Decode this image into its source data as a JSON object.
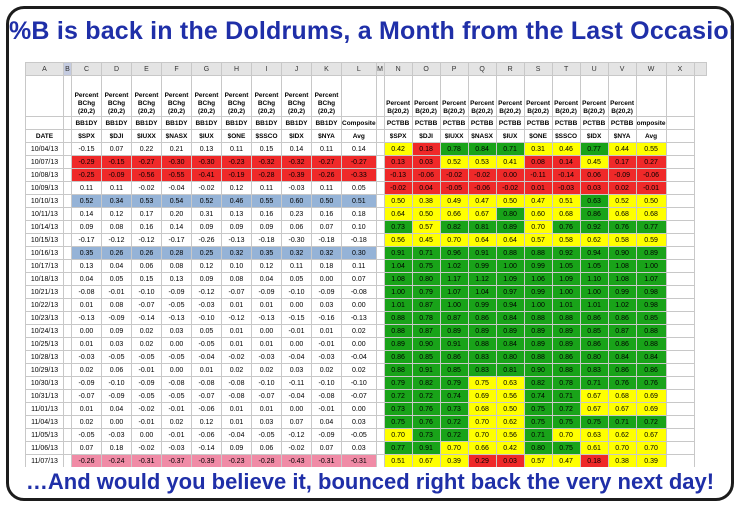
{
  "title": "%B is back in the Doldrums, a Month from the Last Occasion",
  "footer": "…And would you believe it, bounced right back the very next day!",
  "colors": {
    "red": "#ef2929",
    "pink": "#f08ba6",
    "blue": "#95b3d7",
    "yellow": "#ffff00",
    "green": "#19a319",
    "title_blue": "#1f2fa8"
  },
  "column_letters": [
    "A",
    "B",
    "C",
    "D",
    "E",
    "F",
    "G",
    "H",
    "I",
    "J",
    "K",
    "L",
    "M",
    "N",
    "O",
    "P",
    "Q",
    "R",
    "S",
    "T",
    "U",
    "V",
    "W",
    "X"
  ],
  "headers": {
    "bchg": "Percent BChg (20,2)",
    "pct": "Percent B(20,2)",
    "bb_codes": [
      "BB1DY",
      "BB1DY",
      "BB1DY",
      "BB1DY",
      "BB1DY",
      "BB1DY",
      "BB1DY",
      "BB1DY",
      "BB1DY"
    ],
    "composite": "Composite",
    "pct_codes": [
      "PCTBB",
      "PCTBB",
      "PCTBB",
      "PCTBB",
      "PCTBB",
      "PCTBB",
      "PCTBB",
      "PCTBB",
      "PCTBB"
    ],
    "composite2": "omposite",
    "date_label": "DATE",
    "symbols": [
      "$SPX",
      "$DJI",
      "$IUXX",
      "$NASX",
      "$IUX",
      "$ONE",
      "$SSCO",
      "$IDX",
      "$NYA"
    ],
    "avg": "Avg"
  },
  "rows": [
    {
      "date": "10/04/13",
      "left": [
        "-0.15",
        "0.07",
        "0.22",
        "0.21",
        "0.13",
        "0.11",
        "0.15",
        "0.14",
        "0.11",
        "0.14"
      ],
      "lc": "n",
      "right": [
        "0.42",
        "0.18",
        "0.78",
        "0.84",
        "0.71",
        "0.31",
        "0.46",
        "0.77",
        "0.44",
        "0.55"
      ],
      "rc": [
        "y",
        "r",
        "g",
        "g",
        "g",
        "y",
        "y",
        "g",
        "y",
        "y"
      ]
    },
    {
      "date": "10/07/13",
      "left": [
        "-0.29",
        "-0.15",
        "-0.27",
        "-0.30",
        "-0.30",
        "-0.23",
        "-0.32",
        "-0.32",
        "-0.27",
        "-0.27"
      ],
      "lc": "r",
      "right": [
        "0.13",
        "0.03",
        "0.52",
        "0.53",
        "0.41",
        "0.08",
        "0.14",
        "0.45",
        "0.17",
        "0.27"
      ],
      "rc": [
        "r",
        "r",
        "y",
        "y",
        "y",
        "r",
        "r",
        "y",
        "r",
        "r"
      ]
    },
    {
      "date": "10/08/13",
      "left": [
        "-0.25",
        "-0.09",
        "-0.56",
        "-0.55",
        "-0.41",
        "-0.19",
        "-0.28",
        "-0.39",
        "-0.26",
        "-0.33"
      ],
      "lc": "r",
      "right": [
        "-0.13",
        "-0.06",
        "-0.02",
        "-0.02",
        "0.00",
        "-0.11",
        "-0.14",
        "0.06",
        "-0.09",
        "-0.06"
      ],
      "rc": [
        "r",
        "r",
        "r",
        "r",
        "r",
        "r",
        "r",
        "r",
        "r",
        "r"
      ]
    },
    {
      "date": "10/09/13",
      "left": [
        "0.11",
        "0.11",
        "-0.02",
        "-0.04",
        "-0.02",
        "0.12",
        "0.11",
        "-0.03",
        "0.11",
        "0.05"
      ],
      "lc": "n",
      "right": [
        "-0.02",
        "0.04",
        "-0.05",
        "-0.06",
        "-0.02",
        "0.01",
        "-0.03",
        "0.03",
        "0.02",
        "-0.01"
      ],
      "rc": [
        "r",
        "r",
        "r",
        "r",
        "r",
        "r",
        "r",
        "r",
        "r",
        "r"
      ]
    },
    {
      "date": "10/10/13",
      "left": [
        "0.52",
        "0.34",
        "0.53",
        "0.54",
        "0.52",
        "0.46",
        "0.55",
        "0.60",
        "0.50",
        "0.51"
      ],
      "lc": "b",
      "right": [
        "0.50",
        "0.38",
        "0.49",
        "0.47",
        "0.50",
        "0.47",
        "0.51",
        "0.63",
        "0.52",
        "0.50"
      ],
      "rc": [
        "y",
        "y",
        "y",
        "y",
        "y",
        "y",
        "y",
        "g",
        "y",
        "y"
      ]
    },
    {
      "date": "10/11/13",
      "left": [
        "0.14",
        "0.12",
        "0.17",
        "0.20",
        "0.31",
        "0.13",
        "0.16",
        "0.23",
        "0.16",
        "0.18"
      ],
      "lc": "n",
      "right": [
        "0.64",
        "0.50",
        "0.66",
        "0.67",
        "0.80",
        "0.60",
        "0.68",
        "0.86",
        "0.68",
        "0.68"
      ],
      "rc": [
        "y",
        "y",
        "y",
        "y",
        "g",
        "y",
        "y",
        "g",
        "y",
        "y"
      ]
    },
    {
      "date": "10/14/13",
      "left": [
        "0.09",
        "0.08",
        "0.16",
        "0.14",
        "0.09",
        "0.09",
        "0.09",
        "0.06",
        "0.07",
        "0.10"
      ],
      "lc": "n",
      "right": [
        "0.73",
        "0.57",
        "0.82",
        "0.81",
        "0.89",
        "0.70",
        "0.76",
        "0.92",
        "0.76",
        "0.77"
      ],
      "rc": [
        "g",
        "y",
        "g",
        "g",
        "g",
        "y",
        "g",
        "g",
        "g",
        "g"
      ]
    },
    {
      "date": "10/15/13",
      "left": [
        "-0.17",
        "-0.12",
        "-0.12",
        "-0.17",
        "-0.26",
        "-0.13",
        "-0.18",
        "-0.30",
        "-0.18",
        "-0.18"
      ],
      "lc": "n",
      "right": [
        "0.56",
        "0.45",
        "0.70",
        "0.64",
        "0.64",
        "0.57",
        "0.58",
        "0.62",
        "0.58",
        "0.59"
      ],
      "rc": [
        "y",
        "y",
        "y",
        "y",
        "y",
        "y",
        "y",
        "y",
        "y",
        "y"
      ]
    },
    {
      "date": "10/16/13",
      "left": [
        "0.35",
        "0.26",
        "0.26",
        "0.28",
        "0.25",
        "0.32",
        "0.35",
        "0.32",
        "0.32",
        "0.30"
      ],
      "lc": "b",
      "right": [
        "0.91",
        "0.71",
        "0.96",
        "0.91",
        "0.88",
        "0.88",
        "0.92",
        "0.94",
        "0.90",
        "0.89"
      ],
      "rc": [
        "g",
        "g",
        "g",
        "g",
        "g",
        "g",
        "g",
        "g",
        "g",
        "g"
      ]
    },
    {
      "date": "10/17/13",
      "left": [
        "0.13",
        "0.04",
        "0.06",
        "0.08",
        "0.12",
        "0.10",
        "0.12",
        "0.11",
        "0.18",
        "0.11"
      ],
      "lc": "n",
      "right": [
        "1.04",
        "0.75",
        "1.02",
        "0.99",
        "1.00",
        "0.99",
        "1.05",
        "1.05",
        "1.08",
        "1.00"
      ],
      "rc": [
        "g",
        "g",
        "g",
        "g",
        "g",
        "g",
        "g",
        "g",
        "g",
        "g"
      ]
    },
    {
      "date": "10/18/13",
      "left": [
        "0.04",
        "0.05",
        "0.15",
        "0.13",
        "0.09",
        "0.08",
        "0.04",
        "0.05",
        "0.00",
        "0.07"
      ],
      "lc": "n",
      "right": [
        "1.08",
        "0.80",
        "1.17",
        "1.12",
        "1.09",
        "1.06",
        "1.09",
        "1.10",
        "1.08",
        "1.07"
      ],
      "rc": [
        "g",
        "g",
        "g",
        "g",
        "g",
        "g",
        "g",
        "g",
        "g",
        "g"
      ]
    },
    {
      "date": "10/21/13",
      "left": [
        "-0.08",
        "-0.01",
        "-0.10",
        "-0.09",
        "-0.12",
        "-0.07",
        "-0.09",
        "-0.10",
        "-0.09",
        "-0.08"
      ],
      "lc": "n",
      "right": [
        "1.00",
        "0.79",
        "1.07",
        "1.04",
        "0.97",
        "0.99",
        "1.00",
        "1.00",
        "0.99",
        "0.98"
      ],
      "rc": [
        "g",
        "g",
        "g",
        "g",
        "g",
        "g",
        "g",
        "g",
        "g",
        "g"
      ]
    },
    {
      "date": "10/22/13",
      "left": [
        "0.01",
        "0.08",
        "-0.07",
        "-0.05",
        "-0.03",
        "0.01",
        "0.01",
        "0.00",
        "0.03",
        "0.00"
      ],
      "lc": "n",
      "right": [
        "1.01",
        "0.87",
        "1.00",
        "0.99",
        "0.94",
        "1.00",
        "1.01",
        "1.01",
        "1.02",
        "0.98"
      ],
      "rc": [
        "g",
        "g",
        "g",
        "g",
        "g",
        "g",
        "g",
        "g",
        "g",
        "g"
      ]
    },
    {
      "date": "10/23/13",
      "left": [
        "-0.13",
        "-0.09",
        "-0.14",
        "-0.13",
        "-0.10",
        "-0.12",
        "-0.13",
        "-0.15",
        "-0.16",
        "-0.13"
      ],
      "lc": "n",
      "right": [
        "0.88",
        "0.78",
        "0.87",
        "0.86",
        "0.84",
        "0.88",
        "0.88",
        "0.86",
        "0.86",
        "0.85"
      ],
      "rc": [
        "g",
        "g",
        "g",
        "g",
        "g",
        "g",
        "g",
        "g",
        "g",
        "g"
      ]
    },
    {
      "date": "10/24/13",
      "left": [
        "0.00",
        "0.09",
        "0.02",
        "0.03",
        "0.05",
        "0.01",
        "0.00",
        "-0.01",
        "0.01",
        "0.02"
      ],
      "lc": "n",
      "right": [
        "0.88",
        "0.87",
        "0.89",
        "0.89",
        "0.89",
        "0.89",
        "0.89",
        "0.85",
        "0.87",
        "0.88"
      ],
      "rc": [
        "g",
        "g",
        "g",
        "g",
        "g",
        "g",
        "g",
        "g",
        "g",
        "g"
      ]
    },
    {
      "date": "10/25/13",
      "left": [
        "0.01",
        "0.03",
        "0.02",
        "0.00",
        "-0.05",
        "0.01",
        "0.01",
        "0.00",
        "-0.01",
        "0.00"
      ],
      "lc": "n",
      "right": [
        "0.89",
        "0.90",
        "0.91",
        "0.88",
        "0.84",
        "0.89",
        "0.89",
        "0.86",
        "0.86",
        "0.88"
      ],
      "rc": [
        "g",
        "g",
        "g",
        "g",
        "g",
        "g",
        "g",
        "g",
        "g",
        "g"
      ]
    },
    {
      "date": "10/28/13",
      "left": [
        "-0.03",
        "-0.05",
        "-0.05",
        "-0.05",
        "-0.04",
        "-0.02",
        "-0.03",
        "-0.04",
        "-0.03",
        "-0.04"
      ],
      "lc": "n",
      "right": [
        "0.86",
        "0.85",
        "0.86",
        "0.83",
        "0.80",
        "0.88",
        "0.86",
        "0.80",
        "0.84",
        "0.84"
      ],
      "rc": [
        "g",
        "g",
        "g",
        "g",
        "g",
        "g",
        "g",
        "g",
        "g",
        "g"
      ]
    },
    {
      "date": "10/29/13",
      "left": [
        "0.02",
        "0.06",
        "-0.01",
        "0.00",
        "0.01",
        "0.02",
        "0.02",
        "0.03",
        "0.02",
        "0.02"
      ],
      "lc": "n",
      "right": [
        "0.88",
        "0.91",
        "0.85",
        "0.83",
        "0.81",
        "0.90",
        "0.88",
        "0.83",
        "0.86",
        "0.86"
      ],
      "rc": [
        "g",
        "g",
        "g",
        "g",
        "g",
        "g",
        "g",
        "g",
        "g",
        "g"
      ]
    },
    {
      "date": "10/30/13",
      "left": [
        "-0.09",
        "-0.10",
        "-0.09",
        "-0.08",
        "-0.08",
        "-0.08",
        "-0.10",
        "-0.11",
        "-0.10",
        "-0.10"
      ],
      "lc": "n",
      "right": [
        "0.79",
        "0.82",
        "0.79",
        "0.75",
        "0.63",
        "0.82",
        "0.78",
        "0.71",
        "0.76",
        "0.76"
      ],
      "rc": [
        "g",
        "g",
        "g",
        "y",
        "y",
        "g",
        "g",
        "g",
        "g",
        "g"
      ]
    },
    {
      "date": "10/31/13",
      "left": [
        "-0.07",
        "-0.09",
        "-0.05",
        "-0.05",
        "-0.07",
        "-0.08",
        "-0.07",
        "-0.04",
        "-0.08",
        "-0.07"
      ],
      "lc": "n",
      "right": [
        "0.72",
        "0.72",
        "0.74",
        "0.69",
        "0.56",
        "0.74",
        "0.71",
        "0.67",
        "0.68",
        "0.69"
      ],
      "rc": [
        "g",
        "g",
        "g",
        "y",
        "y",
        "g",
        "g",
        "y",
        "y",
        "y"
      ]
    },
    {
      "date": "11/01/13",
      "left": [
        "0.01",
        "0.04",
        "-0.02",
        "-0.01",
        "-0.06",
        "0.01",
        "0.01",
        "0.00",
        "-0.01",
        "0.00"
      ],
      "lc": "n",
      "right": [
        "0.73",
        "0.76",
        "0.73",
        "0.68",
        "0.50",
        "0.75",
        "0.72",
        "0.67",
        "0.67",
        "0.69"
      ],
      "rc": [
        "g",
        "g",
        "g",
        "y",
        "y",
        "g",
        "g",
        "y",
        "y",
        "y"
      ]
    },
    {
      "date": "11/04/13",
      "left": [
        "0.02",
        "0.00",
        "-0.01",
        "0.02",
        "0.12",
        "0.01",
        "0.03",
        "0.07",
        "0.04",
        "0.03"
      ],
      "lc": "n",
      "right": [
        "0.75",
        "0.76",
        "0.72",
        "0.70",
        "0.62",
        "0.75",
        "0.75",
        "0.75",
        "0.71",
        "0.72"
      ],
      "rc": [
        "g",
        "g",
        "g",
        "y",
        "y",
        "g",
        "g",
        "g",
        "g",
        "g"
      ]
    },
    {
      "date": "11/05/13",
      "left": [
        "-0.05",
        "-0.03",
        "0.00",
        "-0.01",
        "-0.06",
        "-0.04",
        "-0.05",
        "-0.12",
        "-0.09",
        "-0.05"
      ],
      "lc": "n",
      "right": [
        "0.70",
        "0.73",
        "0.72",
        "0.70",
        "0.56",
        "0.71",
        "0.70",
        "0.63",
        "0.62",
        "0.67"
      ],
      "rc": [
        "y",
        "g",
        "g",
        "y",
        "y",
        "g",
        "y",
        "y",
        "y",
        "y"
      ]
    },
    {
      "date": "11/06/13",
      "left": [
        "0.07",
        "0.18",
        "-0.02",
        "-0.03",
        "-0.14",
        "0.09",
        "0.06",
        "-0.02",
        "0.07",
        "0.03"
      ],
      "lc": "n",
      "right": [
        "0.77",
        "0.91",
        "0.70",
        "0.66",
        "0.42",
        "0.80",
        "0.75",
        "0.61",
        "0.70",
        "0.70"
      ],
      "rc": [
        "g",
        "g",
        "y",
        "y",
        "y",
        "g",
        "g",
        "y",
        "y",
        "y"
      ]
    },
    {
      "date": "11/07/13",
      "left": [
        "-0.26",
        "-0.24",
        "-0.31",
        "-0.37",
        "-0.39",
        "-0.23",
        "-0.28",
        "-0.43",
        "-0.31",
        "-0.31"
      ],
      "lc": "p",
      "right": [
        "0.51",
        "0.67",
        "0.39",
        "0.29",
        "0.03",
        "0.57",
        "0.47",
        "0.18",
        "0.38",
        "0.39"
      ],
      "rc": [
        "y",
        "y",
        "y",
        "r",
        "r",
        "y",
        "y",
        "r",
        "y",
        "y"
      ]
    },
    {
      "date": "11/08/13",
      "left": [
        "0.25",
        "0.24",
        "0.20",
        "0.28",
        "0.38",
        "0.24",
        "0.26",
        "0.23",
        "0.27",
        "0.27"
      ],
      "lc": "b",
      "right": [
        "0.76",
        "0.91",
        "0.59",
        "0.58",
        "0.41",
        "0.80",
        "0.74",
        "0.50",
        "0.62",
        "0.66"
      ],
      "rc": [
        "g",
        "g",
        "y",
        "y",
        "y",
        "g",
        "g",
        "y",
        "y",
        "y"
      ]
    }
  ]
}
